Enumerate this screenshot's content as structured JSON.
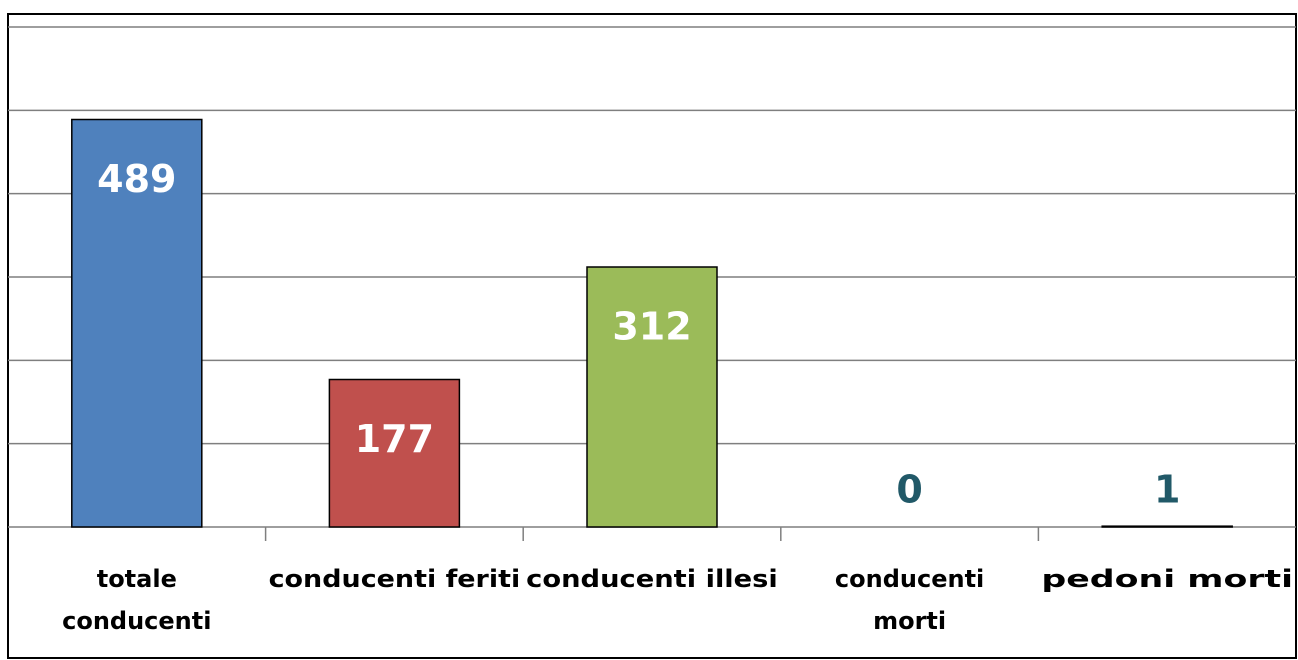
{
  "chart_data": {
    "type": "bar",
    "categories": [
      "totale conducenti",
      "conducenti feriti",
      "conducenti illesi",
      "conducenti morti",
      "pedoni morti"
    ],
    "values": [
      489,
      177,
      312,
      0,
      1
    ],
    "colors": [
      "#4f81bd",
      "#c0504d",
      "#9bbb59",
      "#8064a2",
      "#4bacc6"
    ],
    "ylim": [
      0,
      600
    ],
    "yticks": [
      0,
      100,
      200,
      300,
      400,
      500,
      600
    ],
    "grid": true
  }
}
